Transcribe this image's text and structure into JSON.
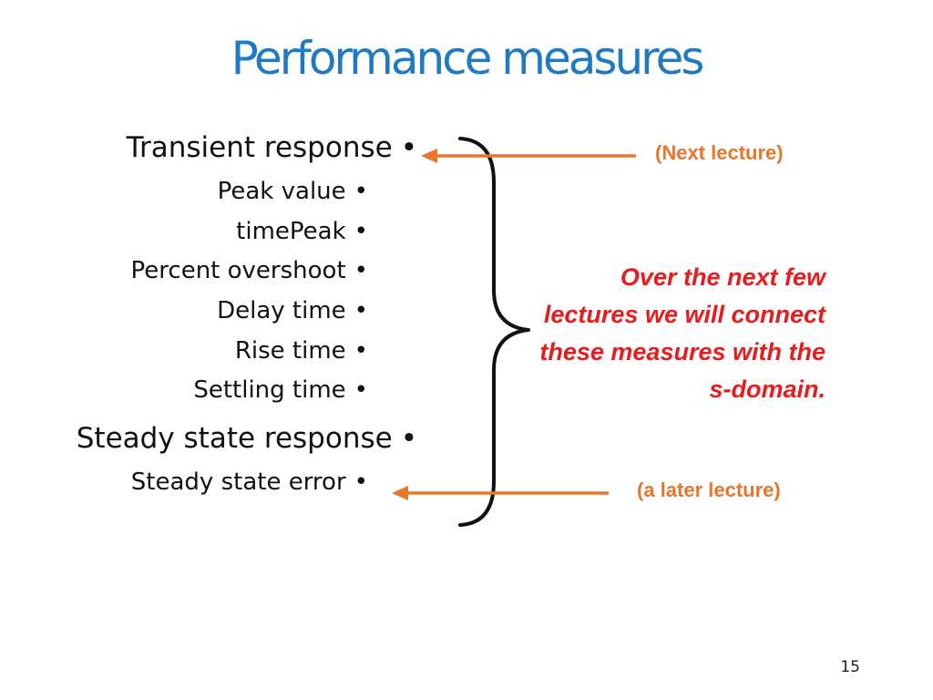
{
  "slide": {
    "title": "Performance measures",
    "page_number": "15"
  },
  "bullets": [
    {
      "text": "Transient response",
      "level": 1
    },
    {
      "text": "Peak value",
      "level": 2
    },
    {
      "text": "timePeak",
      "level": 2
    },
    {
      "text": "Percent overshoot",
      "level": 2
    },
    {
      "text": "Delay time",
      "level": 2
    },
    {
      "text": "Rise time",
      "level": 2
    },
    {
      "text": "Settling time",
      "level": 2
    },
    {
      "text": "Steady state response",
      "level": 1
    },
    {
      "text": "Steady state error",
      "level": 2
    }
  ],
  "bullet_symbol": "•",
  "annotations": {
    "next_lecture": "(Next lecture)",
    "later_lecture": "(a later lecture)",
    "summary": "Over the next few lectures we will connect these measures with the s-domain."
  },
  "colors": {
    "title": "#1f7ac4",
    "arrow": "#e8762b",
    "note": "#e8762b",
    "summary": "#e81c1c",
    "brace": "#111111"
  },
  "icons": {
    "arrow": "arrow-left-icon",
    "brace": "curly-brace-icon"
  }
}
